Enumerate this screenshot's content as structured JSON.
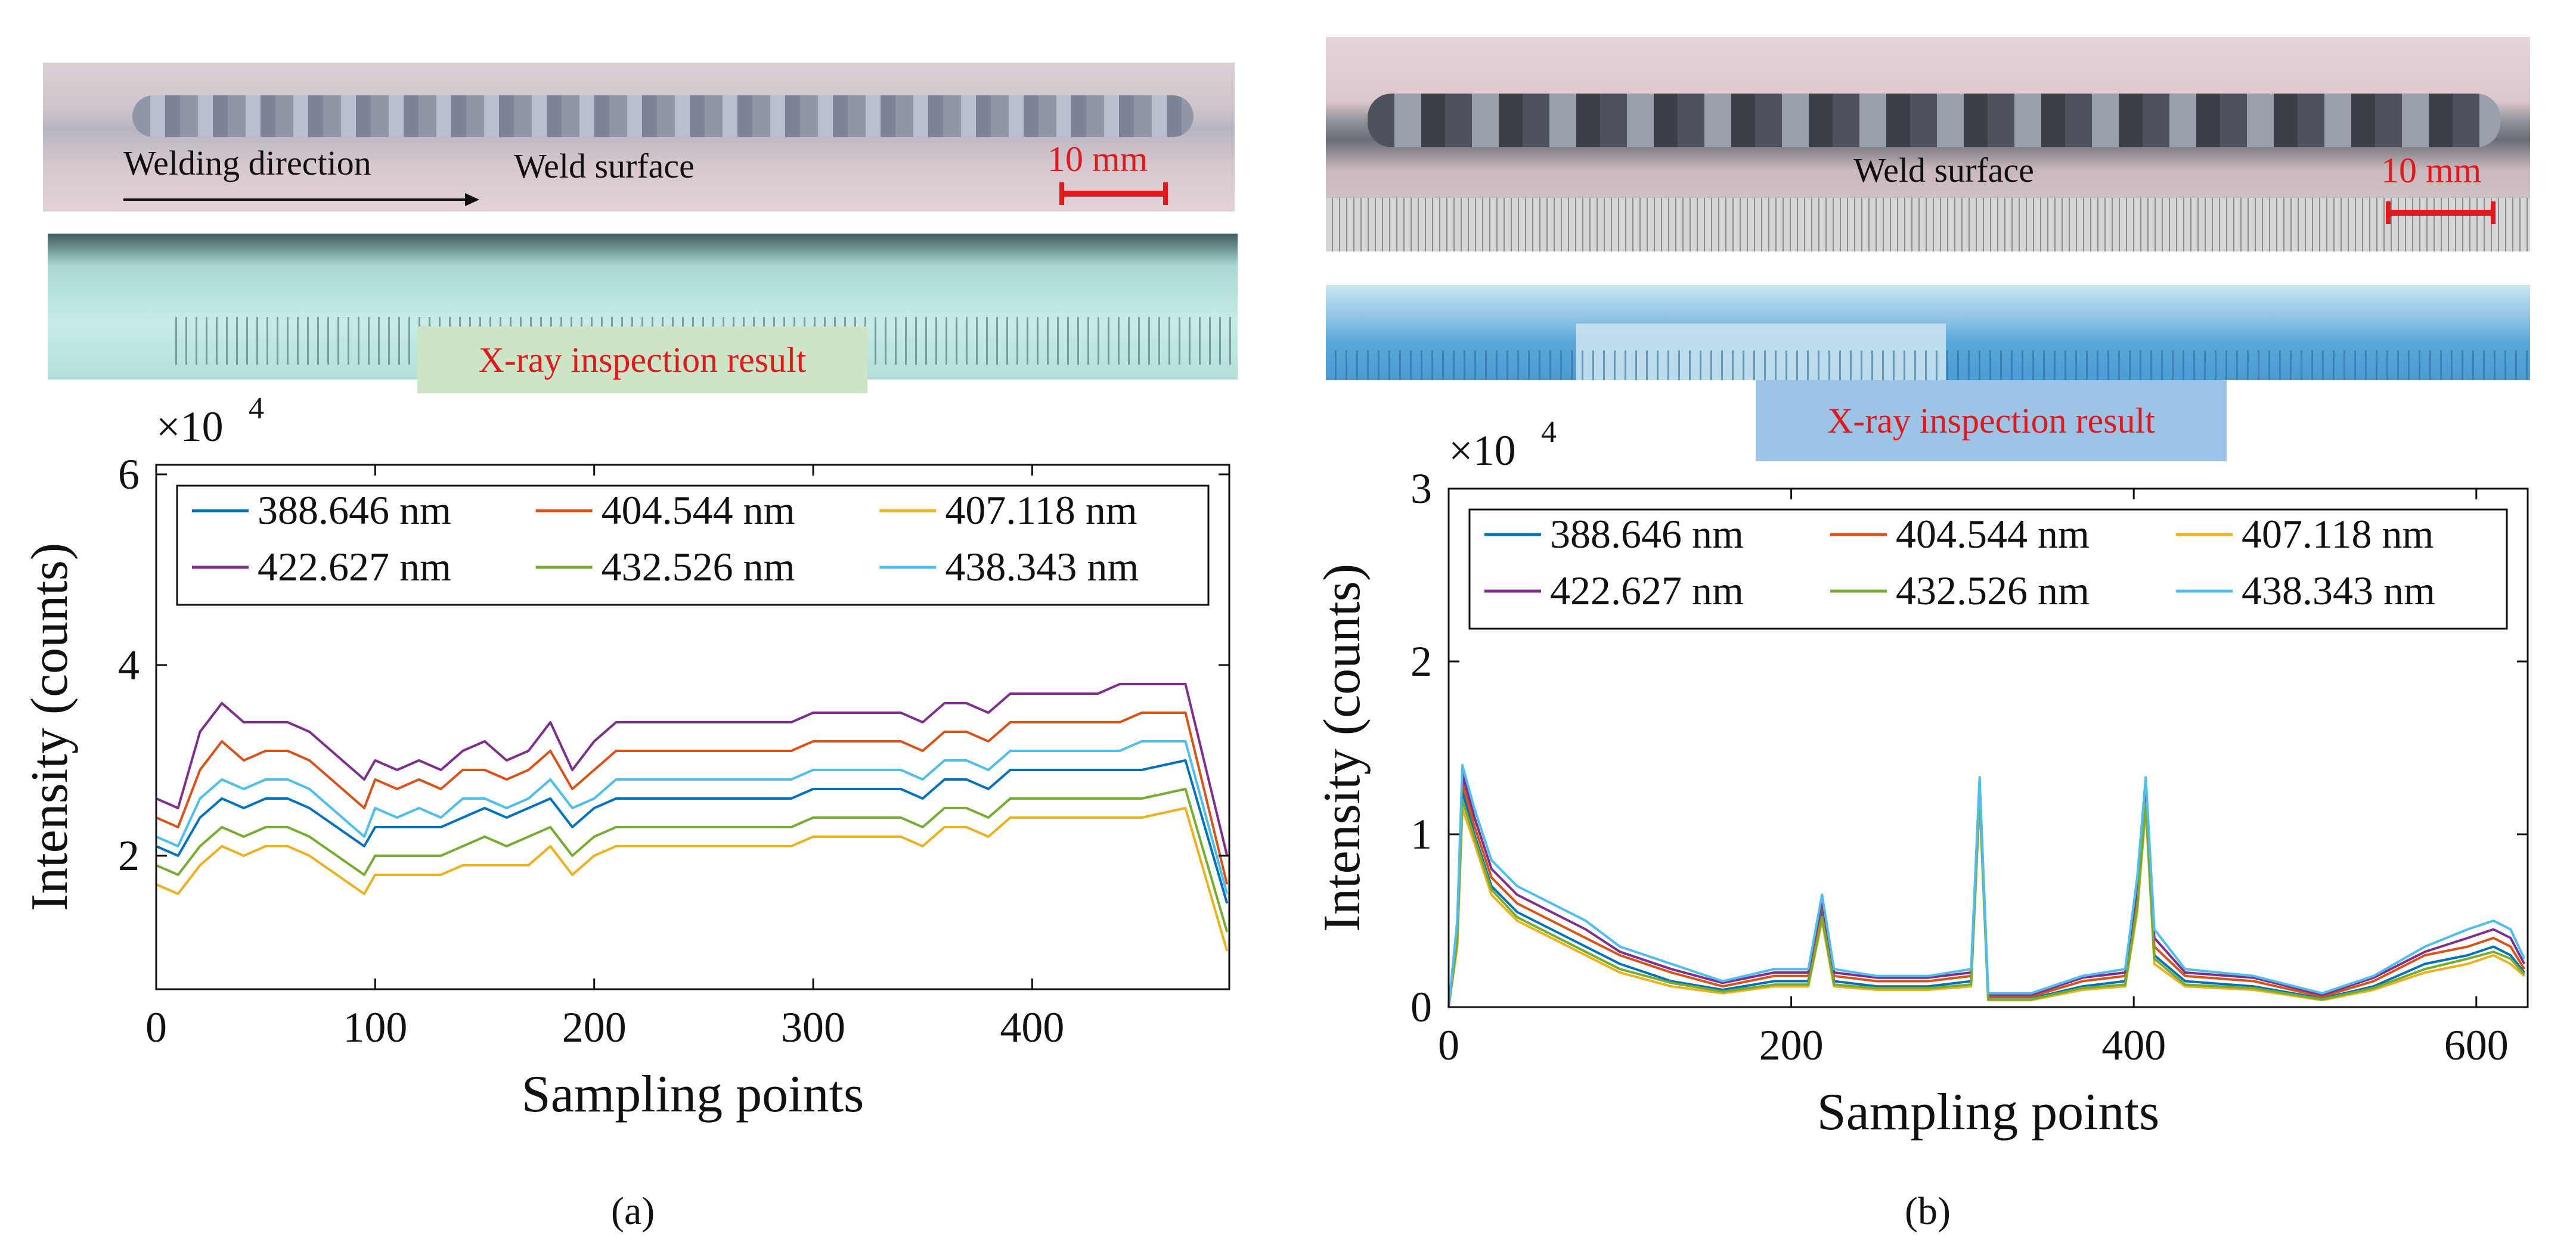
{
  "panels": {
    "a": {
      "weld_photo": {
        "direction_label": "Welding direction",
        "surface_label": "Weld surface",
        "scale_label": "10 mm"
      },
      "xray_label": "X-ray inspection result",
      "sublabel": "(a)"
    },
    "b": {
      "weld_photo": {
        "surface_label": "Weld surface",
        "scale_label": "10 mm"
      },
      "xray_label": "X-ray inspection result",
      "sublabel": "(b)"
    }
  },
  "colors": {
    "scale_red": "#e0191c",
    "label_green_bg": "#cde4c6",
    "label_blue_bg": "#9dc3e6"
  },
  "chart_data": [
    {
      "type": "line",
      "panel": "a",
      "xlabel": "Sampling points",
      "ylabel": "Intensity (counts)",
      "multiplier_label": "×10",
      "multiplier_exp": "4",
      "xlim": [
        0,
        490
      ],
      "ylim": [
        0.6,
        6.1
      ],
      "xticks": [
        0,
        100,
        200,
        300,
        400
      ],
      "yticks": [
        2,
        4,
        6
      ],
      "legend_position": "top",
      "series": [
        {
          "name": "388.646 nm",
          "color": "#0072bd",
          "values": [
            2.1,
            2.0,
            2.4,
            2.6,
            2.5,
            2.6,
            2.6,
            2.5,
            2.1,
            2.3,
            2.3,
            2.3,
            2.3,
            2.4,
            2.5,
            2.4,
            2.5,
            2.6,
            2.3,
            2.5,
            2.6,
            2.6,
            2.6,
            2.6,
            2.6,
            2.6,
            2.6,
            2.6,
            2.6,
            2.7,
            2.7,
            2.7,
            2.7,
            2.7,
            2.6,
            2.8,
            2.8,
            2.7,
            2.9,
            2.9,
            2.9,
            2.9,
            2.9,
            2.9,
            2.9,
            3.0,
            1.5
          ]
        },
        {
          "name": "404.544 nm",
          "color": "#d95319",
          "values": [
            2.4,
            2.3,
            2.9,
            3.2,
            3.0,
            3.1,
            3.1,
            3.0,
            2.5,
            2.8,
            2.7,
            2.8,
            2.7,
            2.9,
            2.9,
            2.8,
            2.9,
            3.1,
            2.7,
            2.9,
            3.1,
            3.1,
            3.1,
            3.1,
            3.1,
            3.1,
            3.1,
            3.1,
            3.1,
            3.2,
            3.2,
            3.2,
            3.2,
            3.2,
            3.1,
            3.3,
            3.3,
            3.2,
            3.4,
            3.4,
            3.4,
            3.4,
            3.4,
            3.4,
            3.5,
            3.5,
            1.7
          ]
        },
        {
          "name": "407.118 nm",
          "color": "#edb120",
          "values": [
            1.7,
            1.6,
            1.9,
            2.1,
            2.0,
            2.1,
            2.1,
            2.0,
            1.6,
            1.8,
            1.8,
            1.8,
            1.8,
            1.9,
            1.9,
            1.9,
            1.9,
            2.1,
            1.8,
            2.0,
            2.1,
            2.1,
            2.1,
            2.1,
            2.1,
            2.1,
            2.1,
            2.1,
            2.1,
            2.2,
            2.2,
            2.2,
            2.2,
            2.2,
            2.1,
            2.3,
            2.3,
            2.2,
            2.4,
            2.4,
            2.4,
            2.4,
            2.4,
            2.4,
            2.4,
            2.5,
            1.0
          ]
        },
        {
          "name": "422.627 nm",
          "color": "#7e2f8e",
          "values": [
            2.6,
            2.5,
            3.3,
            3.6,
            3.4,
            3.4,
            3.4,
            3.3,
            2.8,
            3.0,
            2.9,
            3.0,
            2.9,
            3.1,
            3.2,
            3.0,
            3.1,
            3.4,
            2.9,
            3.2,
            3.4,
            3.4,
            3.4,
            3.4,
            3.4,
            3.4,
            3.4,
            3.4,
            3.4,
            3.5,
            3.5,
            3.5,
            3.5,
            3.5,
            3.4,
            3.6,
            3.6,
            3.5,
            3.7,
            3.7,
            3.7,
            3.7,
            3.7,
            3.8,
            3.8,
            3.8,
            2.0
          ]
        },
        {
          "name": "432.526 nm",
          "color": "#77ac30",
          "values": [
            1.9,
            1.8,
            2.1,
            2.3,
            2.2,
            2.3,
            2.3,
            2.2,
            1.8,
            2.0,
            2.0,
            2.0,
            2.0,
            2.1,
            2.2,
            2.1,
            2.2,
            2.3,
            2.0,
            2.2,
            2.3,
            2.3,
            2.3,
            2.3,
            2.3,
            2.3,
            2.3,
            2.3,
            2.3,
            2.4,
            2.4,
            2.4,
            2.4,
            2.4,
            2.3,
            2.5,
            2.5,
            2.4,
            2.6,
            2.6,
            2.6,
            2.6,
            2.6,
            2.6,
            2.6,
            2.7,
            1.2
          ]
        },
        {
          "name": "438.343 nm",
          "color": "#4dbeee",
          "values": [
            2.2,
            2.1,
            2.6,
            2.8,
            2.7,
            2.8,
            2.8,
            2.7,
            2.2,
            2.5,
            2.4,
            2.5,
            2.4,
            2.6,
            2.6,
            2.5,
            2.6,
            2.8,
            2.5,
            2.6,
            2.8,
            2.8,
            2.8,
            2.8,
            2.8,
            2.8,
            2.8,
            2.8,
            2.8,
            2.9,
            2.9,
            2.9,
            2.9,
            2.9,
            2.8,
            3.0,
            3.0,
            2.9,
            3.1,
            3.1,
            3.1,
            3.1,
            3.1,
            3.1,
            3.2,
            3.2,
            1.6
          ]
        }
      ],
      "x": [
        0,
        10,
        20,
        30,
        40,
        50,
        60,
        70,
        95,
        100,
        110,
        120,
        130,
        140,
        150,
        160,
        170,
        180,
        190,
        200,
        210,
        220,
        230,
        240,
        250,
        260,
        270,
        280,
        290,
        300,
        310,
        320,
        330,
        340,
        350,
        360,
        370,
        380,
        390,
        400,
        410,
        420,
        430,
        440,
        450,
        470,
        489
      ]
    },
    {
      "type": "line",
      "panel": "b",
      "xlabel": "Sampling points",
      "ylabel": "Intensity (counts)",
      "multiplier_label": "×10",
      "multiplier_exp": "4",
      "xlim": [
        0,
        630
      ],
      "ylim": [
        0,
        3
      ],
      "xticks": [
        0,
        200,
        400,
        600
      ],
      "yticks": [
        0,
        1,
        2,
        3
      ],
      "legend_position": "top",
      "x": [
        0,
        5,
        8,
        15,
        25,
        40,
        60,
        80,
        100,
        130,
        160,
        190,
        210,
        218,
        225,
        250,
        280,
        305,
        310,
        315,
        340,
        370,
        395,
        402,
        407,
        412,
        430,
        470,
        510,
        540,
        570,
        595,
        610,
        620,
        628
      ],
      "series": [
        {
          "name": "388.646 nm",
          "color": "#0072bd",
          "values": [
            0,
            0.4,
            1.25,
            1.0,
            0.7,
            0.55,
            0.45,
            0.35,
            0.25,
            0.15,
            0.1,
            0.15,
            0.15,
            0.55,
            0.15,
            0.12,
            0.12,
            0.15,
            1.25,
            0.05,
            0.05,
            0.12,
            0.15,
            0.6,
            1.2,
            0.3,
            0.15,
            0.12,
            0.05,
            0.12,
            0.25,
            0.3,
            0.35,
            0.3,
            0.2
          ]
        },
        {
          "name": "404.544 nm",
          "color": "#d95319",
          "values": [
            0,
            0.4,
            1.3,
            1.05,
            0.75,
            0.6,
            0.5,
            0.4,
            0.3,
            0.2,
            0.12,
            0.18,
            0.18,
            0.6,
            0.18,
            0.15,
            0.15,
            0.18,
            1.28,
            0.06,
            0.06,
            0.15,
            0.18,
            0.65,
            1.25,
            0.35,
            0.18,
            0.15,
            0.06,
            0.15,
            0.3,
            0.35,
            0.4,
            0.35,
            0.22
          ]
        },
        {
          "name": "407.118 nm",
          "color": "#edb120",
          "values": [
            0,
            0.35,
            1.15,
            0.95,
            0.65,
            0.5,
            0.4,
            0.3,
            0.2,
            0.12,
            0.08,
            0.12,
            0.12,
            0.5,
            0.12,
            0.1,
            0.1,
            0.12,
            1.2,
            0.04,
            0.04,
            0.1,
            0.12,
            0.55,
            1.15,
            0.25,
            0.12,
            0.1,
            0.04,
            0.1,
            0.2,
            0.25,
            0.3,
            0.25,
            0.18
          ]
        },
        {
          "name": "422.627 nm",
          "color": "#7e2f8e",
          "values": [
            0,
            0.45,
            1.35,
            1.1,
            0.8,
            0.65,
            0.55,
            0.45,
            0.32,
            0.22,
            0.14,
            0.2,
            0.2,
            0.62,
            0.2,
            0.17,
            0.17,
            0.2,
            1.3,
            0.07,
            0.07,
            0.17,
            0.2,
            0.7,
            1.3,
            0.4,
            0.2,
            0.17,
            0.07,
            0.17,
            0.32,
            0.4,
            0.45,
            0.4,
            0.25
          ]
        },
        {
          "name": "432.526 nm",
          "color": "#77ac30",
          "values": [
            0,
            0.38,
            1.2,
            0.98,
            0.68,
            0.52,
            0.42,
            0.32,
            0.22,
            0.14,
            0.09,
            0.13,
            0.13,
            0.52,
            0.13,
            0.11,
            0.11,
            0.13,
            1.22,
            0.045,
            0.045,
            0.11,
            0.13,
            0.58,
            1.18,
            0.28,
            0.13,
            0.11,
            0.045,
            0.11,
            0.22,
            0.28,
            0.32,
            0.28,
            0.19
          ]
        },
        {
          "name": "438.343 nm",
          "color": "#4dbeee",
          "values": [
            0,
            0.5,
            1.4,
            1.15,
            0.85,
            0.7,
            0.6,
            0.5,
            0.35,
            0.25,
            0.15,
            0.22,
            0.22,
            0.65,
            0.22,
            0.18,
            0.18,
            0.22,
            1.33,
            0.08,
            0.08,
            0.18,
            0.22,
            0.75,
            1.33,
            0.45,
            0.22,
            0.18,
            0.08,
            0.18,
            0.35,
            0.45,
            0.5,
            0.45,
            0.28
          ]
        }
      ]
    }
  ]
}
